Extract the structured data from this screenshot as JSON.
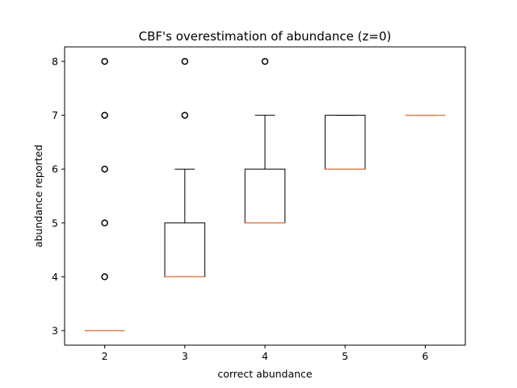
{
  "chart_data": {
    "type": "boxplot",
    "title": "CBF's overestimation of abundance (z=0)",
    "xlabel": "correct abundance",
    "ylabel": "abundance reported",
    "categories": [
      "2",
      "3",
      "4",
      "5",
      "6"
    ],
    "ylim": [
      2.73,
      8.27
    ],
    "yticks": [
      "3",
      "4",
      "5",
      "6",
      "7",
      "8"
    ],
    "grid": false,
    "colors": {
      "box": "#000000",
      "median": "#dd8452",
      "flier": "#000000"
    },
    "boxes": [
      {
        "x": 2,
        "q1": 3,
        "median": 3,
        "q3": 3,
        "whisker_low": 3,
        "whisker_high": 3,
        "fliers": [
          4,
          5,
          6,
          7,
          8
        ]
      },
      {
        "x": 3,
        "q1": 4,
        "median": 4,
        "q3": 5,
        "whisker_low": 4,
        "whisker_high": 6,
        "fliers": [
          7,
          8
        ]
      },
      {
        "x": 4,
        "q1": 5,
        "median": 5,
        "q3": 6,
        "whisker_low": 5,
        "whisker_high": 7,
        "fliers": [
          8
        ]
      },
      {
        "x": 5,
        "q1": 6,
        "median": 6,
        "q3": 7,
        "whisker_low": 6,
        "whisker_high": 7,
        "fliers": []
      },
      {
        "x": 6,
        "q1": 7,
        "median": 7,
        "q3": 7,
        "whisker_low": 7,
        "whisker_high": 7,
        "fliers": []
      }
    ]
  }
}
